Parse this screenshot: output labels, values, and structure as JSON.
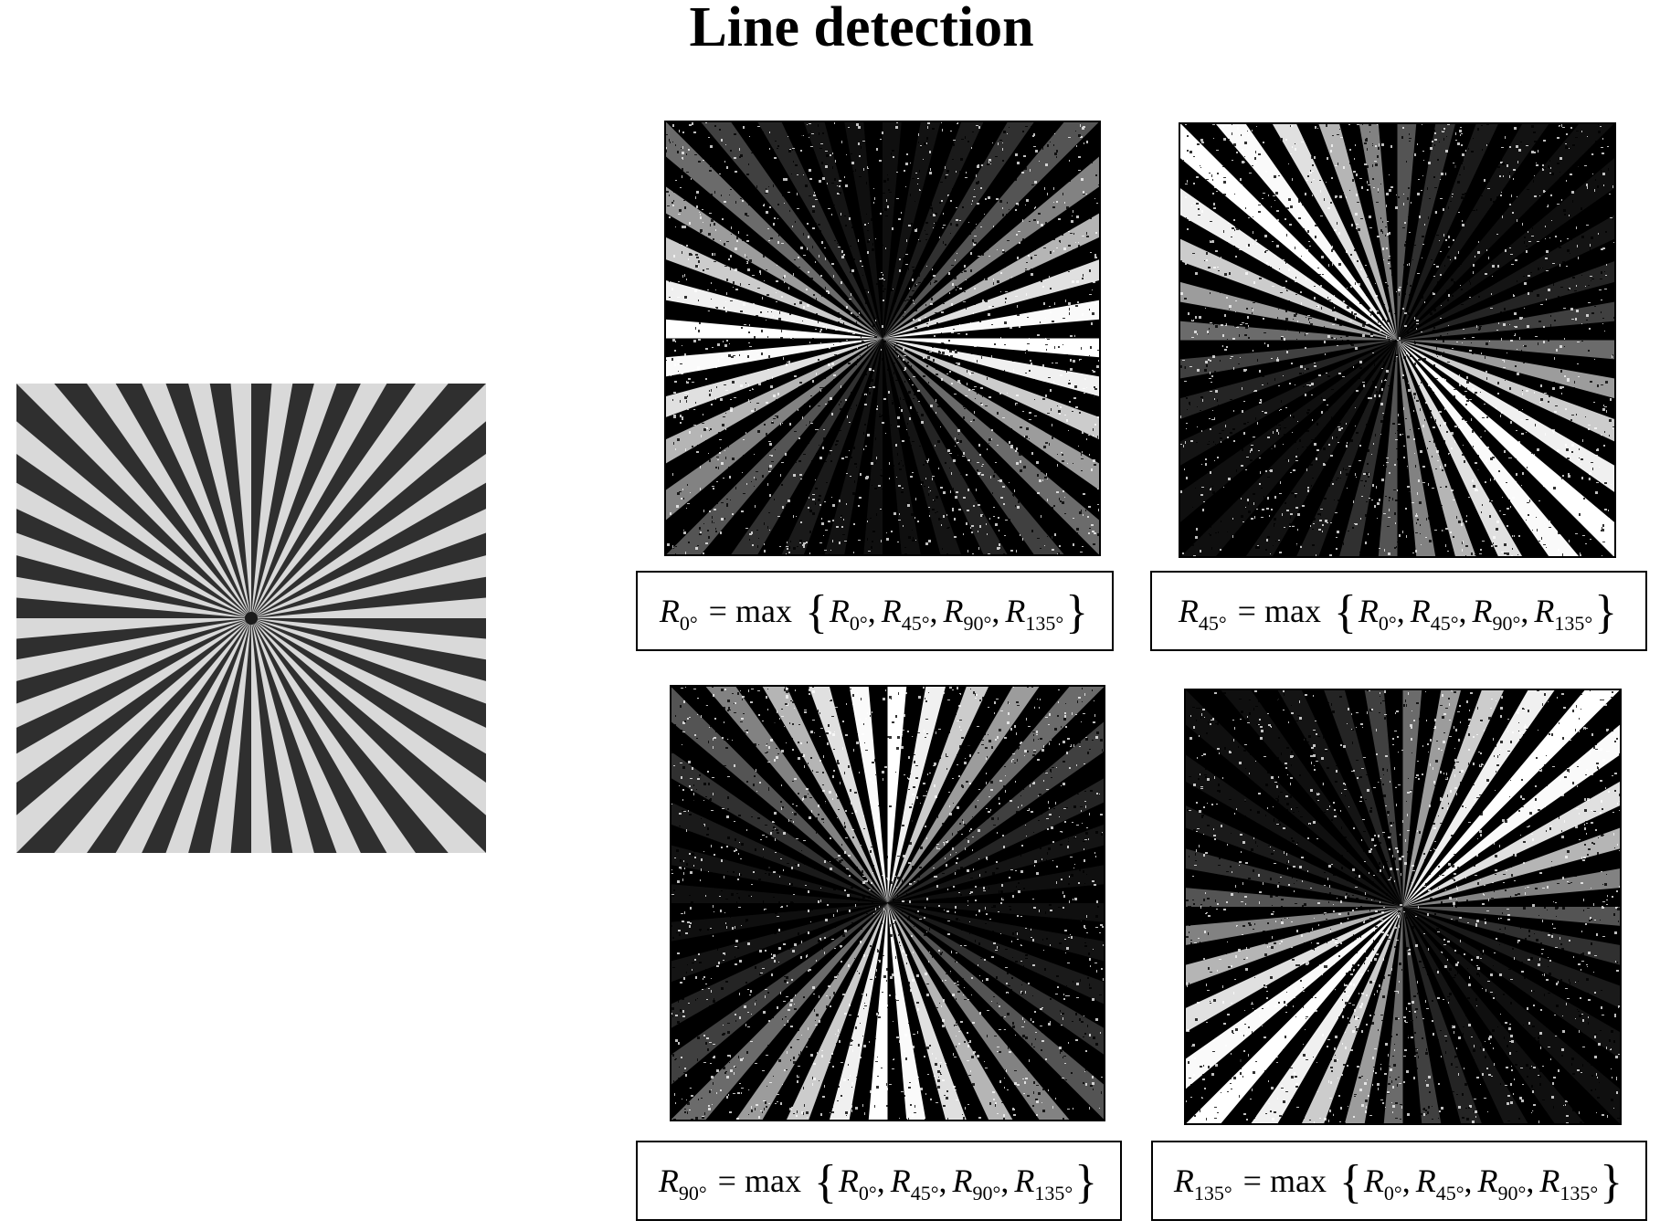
{
  "title": "Line detection",
  "formulas": [
    {
      "id": "r0",
      "lhs": {
        "symbol": "R",
        "subscript": "0°"
      },
      "operator": "= max",
      "terms": [
        {
          "symbol": "R",
          "subscript": "0°"
        },
        {
          "symbol": "R",
          "subscript": "45°"
        },
        {
          "symbol": "R",
          "subscript": "90°"
        },
        {
          "symbol": "R",
          "subscript": "135°"
        }
      ]
    },
    {
      "id": "r45",
      "lhs": {
        "symbol": "R",
        "subscript": "45°"
      },
      "operator": "= max",
      "terms": [
        {
          "symbol": "R",
          "subscript": "0°"
        },
        {
          "symbol": "R",
          "subscript": "45°"
        },
        {
          "symbol": "R",
          "subscript": "90°"
        },
        {
          "symbol": "R",
          "subscript": "135°"
        }
      ]
    },
    {
      "id": "r90",
      "lhs": {
        "symbol": "R",
        "subscript": "90°"
      },
      "operator": "= max",
      "terms": [
        {
          "symbol": "R",
          "subscript": "0°"
        },
        {
          "symbol": "R",
          "subscript": "45°"
        },
        {
          "symbol": "R",
          "subscript": "90°"
        },
        {
          "symbol": "R",
          "subscript": "135°"
        }
      ]
    },
    {
      "id": "r135",
      "lhs": {
        "symbol": "R",
        "subscript": "135°"
      },
      "operator": "= max",
      "terms": [
        {
          "symbol": "R",
          "subscript": "0°"
        },
        {
          "symbol": "R",
          "subscript": "45°"
        },
        {
          "symbol": "R",
          "subscript": "90°"
        },
        {
          "symbol": "R",
          "subscript": "135°"
        }
      ]
    }
  ],
  "colors": {
    "background": "#ffffff",
    "foreground": "#000000",
    "starburst_light": "#d9d9d9",
    "starburst_dark": "#2f2f2f"
  }
}
